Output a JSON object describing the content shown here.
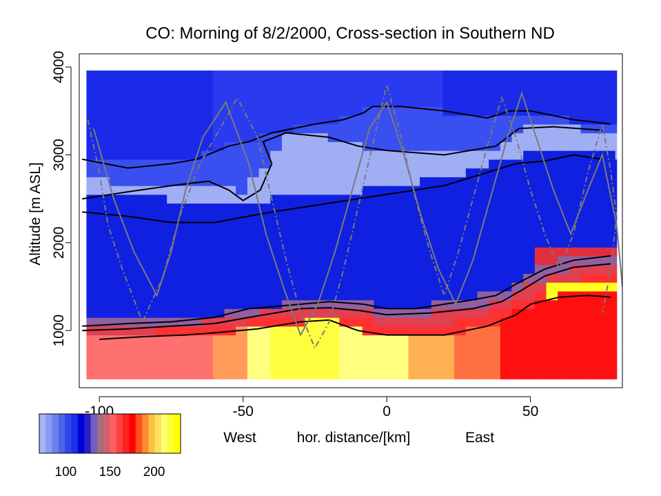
{
  "chart_data": {
    "type": "heatmap",
    "title": "CO: Morning of 8/2/2000, Cross-section in Southern ND",
    "ylabel": "Altitude [m ASL]",
    "xlabel": "hor. distance/[km]",
    "xlabel_left": "West",
    "xlabel_right": "East",
    "xlim": [
      -107,
      82
    ],
    "ylim": [
      350,
      4150
    ],
    "x_ticks": [
      -100,
      -50,
      0,
      50
    ],
    "x_tick_labels": [
      "-100",
      "-50",
      "0",
      "50"
    ],
    "y_ticks": [
      1000,
      2000,
      3000,
      4000
    ],
    "y_tick_labels": [
      "1000",
      "2000",
      "3000",
      "4000"
    ],
    "colorbar": {
      "ticks": [
        100,
        150,
        200
      ],
      "tick_labels": [
        "100",
        "150",
        "200"
      ],
      "range": [
        70,
        230
      ],
      "colors": [
        "#a6b4f5",
        "#8a9af2",
        "#6c80ef",
        "#4e63ec",
        "#3046e9",
        "#1a30e6",
        "#0000d8",
        "#2a1fc8",
        "#7060c0",
        "#a07080",
        "#d06070",
        "#ff6060",
        "#ff4040",
        "#ff2020",
        "#ff0000",
        "#ff5020",
        "#ff8a30",
        "#ffc040",
        "#ffe060",
        "#ffff70",
        "#ffff30",
        "#ffff00"
      ]
    },
    "bands": [
      {
        "name": "low-yellow-core",
        "value": 225
      },
      {
        "name": "low-red",
        "value": 165
      },
      {
        "name": "mid-blue",
        "value": 100
      },
      {
        "name": "light-blue-layer",
        "value": 85
      },
      {
        "name": "upper-blue",
        "value": 105
      }
    ],
    "contour_lines": [
      {
        "name": "upper-boundary",
        "points": [
          [
            -106,
            2950
          ],
          [
            -90,
            2850
          ],
          [
            -75,
            2900
          ],
          [
            -66,
            2950
          ],
          [
            -55,
            3100
          ],
          [
            -48,
            3150
          ],
          [
            -40,
            3250
          ],
          [
            -25,
            3350
          ],
          [
            -15,
            3400
          ],
          [
            -8,
            3480
          ],
          [
            -5,
            3550
          ],
          [
            5,
            3550
          ],
          [
            20,
            3500
          ],
          [
            35,
            3420
          ],
          [
            43,
            3500
          ],
          [
            50,
            3500
          ],
          [
            65,
            3400
          ],
          [
            78,
            3350
          ]
        ]
      },
      {
        "name": "light-layer-top",
        "points": [
          [
            -106,
            2500
          ],
          [
            -90,
            2580
          ],
          [
            -75,
            2650
          ],
          [
            -62,
            2700
          ],
          [
            -55,
            2600
          ],
          [
            -50,
            2480
          ],
          [
            -44,
            2600
          ],
          [
            -40,
            2900
          ],
          [
            -43,
            3150
          ],
          [
            -35,
            3250
          ],
          [
            -20,
            3200
          ],
          [
            -10,
            3100
          ],
          [
            0,
            3050
          ],
          [
            20,
            3000
          ],
          [
            38,
            3100
          ],
          [
            46,
            3300
          ],
          [
            58,
            3320
          ],
          [
            75,
            3280
          ]
        ]
      },
      {
        "name": "light-layer-bottom",
        "points": [
          [
            -106,
            2350
          ],
          [
            -90,
            2300
          ],
          [
            -75,
            2230
          ],
          [
            -60,
            2230
          ],
          [
            -50,
            2290
          ],
          [
            -40,
            2350
          ],
          [
            -20,
            2450
          ],
          [
            0,
            2550
          ],
          [
            20,
            2650
          ],
          [
            35,
            2800
          ],
          [
            45,
            2900
          ],
          [
            55,
            2930
          ],
          [
            65,
            3000
          ],
          [
            75,
            2950
          ]
        ]
      },
      {
        "name": "inversion-top",
        "points": [
          [
            -106,
            1050
          ],
          [
            -90,
            1080
          ],
          [
            -75,
            1100
          ],
          [
            -60,
            1150
          ],
          [
            -48,
            1250
          ],
          [
            -30,
            1300
          ],
          [
            -20,
            1330
          ],
          [
            -8,
            1300
          ],
          [
            0,
            1250
          ],
          [
            10,
            1250
          ],
          [
            20,
            1300
          ],
          [
            30,
            1350
          ],
          [
            38,
            1400
          ],
          [
            45,
            1530
          ],
          [
            55,
            1700
          ],
          [
            65,
            1800
          ],
          [
            78,
            1850
          ]
        ]
      },
      {
        "name": "inversion-mid",
        "points": [
          [
            -106,
            1000
          ],
          [
            -90,
            1020
          ],
          [
            -75,
            1050
          ],
          [
            -60,
            1080
          ],
          [
            -48,
            1150
          ],
          [
            -30,
            1250
          ],
          [
            -20,
            1260
          ],
          [
            -10,
            1230
          ],
          [
            0,
            1180
          ],
          [
            15,
            1200
          ],
          [
            30,
            1250
          ],
          [
            40,
            1330
          ],
          [
            48,
            1480
          ],
          [
            55,
            1620
          ],
          [
            65,
            1720
          ],
          [
            78,
            1760
          ]
        ]
      },
      {
        "name": "core-top",
        "points": [
          [
            -100,
            900
          ],
          [
            -85,
            930
          ],
          [
            -70,
            950
          ],
          [
            -58,
            980
          ],
          [
            -45,
            1020
          ],
          [
            -30,
            1100
          ],
          [
            -20,
            1120
          ],
          [
            -10,
            1000
          ],
          [
            0,
            950
          ],
          [
            20,
            950
          ],
          [
            35,
            1050
          ],
          [
            45,
            1180
          ],
          [
            50,
            1300
          ],
          [
            60,
            1380
          ],
          [
            70,
            1400
          ],
          [
            78,
            1380
          ]
        ]
      }
    ],
    "flight_tracks": [
      {
        "name": "flight-track-1",
        "style": "dashed",
        "points": [
          [
            -104,
            3400
          ],
          [
            -100,
            2800
          ],
          [
            -97,
            2200
          ],
          [
            -92,
            1700
          ],
          [
            -85,
            1100
          ],
          [
            -78,
            1600
          ],
          [
            -72,
            2300
          ],
          [
            -65,
            2900
          ],
          [
            -58,
            3300
          ],
          [
            -52,
            3650
          ],
          [
            -45,
            3200
          ],
          [
            -40,
            2500
          ],
          [
            -35,
            1800
          ],
          [
            -30,
            1200
          ],
          [
            -25,
            800
          ],
          [
            -20,
            1100
          ],
          [
            -15,
            1700
          ],
          [
            -10,
            2400
          ],
          [
            -5,
            3100
          ],
          [
            0,
            3800
          ],
          [
            5,
            3200
          ],
          [
            10,
            2500
          ],
          [
            15,
            1900
          ],
          [
            20,
            1400
          ],
          [
            25,
            1900
          ],
          [
            30,
            2500
          ],
          [
            35,
            3100
          ],
          [
            40,
            3650
          ],
          [
            45,
            3200
          ],
          [
            50,
            2600
          ],
          [
            55,
            2100
          ],
          [
            60,
            1700
          ],
          [
            65,
            2100
          ],
          [
            70,
            2800
          ],
          [
            75,
            3350
          ],
          [
            78,
            2800
          ],
          [
            80,
            2300
          ],
          [
            78,
            1700
          ],
          [
            75,
            1200
          ]
        ]
      },
      {
        "name": "flight-track-2",
        "style": "solid",
        "points": [
          [
            -102,
            3300
          ],
          [
            -95,
            2500
          ],
          [
            -88,
            1900
          ],
          [
            -80,
            1400
          ],
          [
            -75,
            1900
          ],
          [
            -70,
            2600
          ],
          [
            -64,
            3200
          ],
          [
            -56,
            3600
          ],
          [
            -48,
            2900
          ],
          [
            -42,
            2100
          ],
          [
            -36,
            1500
          ],
          [
            -30,
            950
          ],
          [
            -24,
            1300
          ],
          [
            -18,
            1900
          ],
          [
            -12,
            2600
          ],
          [
            -6,
            3300
          ],
          [
            0,
            3600
          ],
          [
            6,
            3000
          ],
          [
            12,
            2300
          ],
          [
            18,
            1700
          ],
          [
            24,
            1300
          ],
          [
            30,
            1800
          ],
          [
            36,
            2500
          ],
          [
            42,
            3200
          ],
          [
            47,
            3700
          ],
          [
            52,
            3200
          ],
          [
            58,
            2600
          ],
          [
            64,
            2100
          ],
          [
            70,
            2600
          ],
          [
            75,
            3000
          ],
          [
            80,
            2200
          ],
          [
            82,
            1500
          ]
        ]
      }
    ]
  }
}
